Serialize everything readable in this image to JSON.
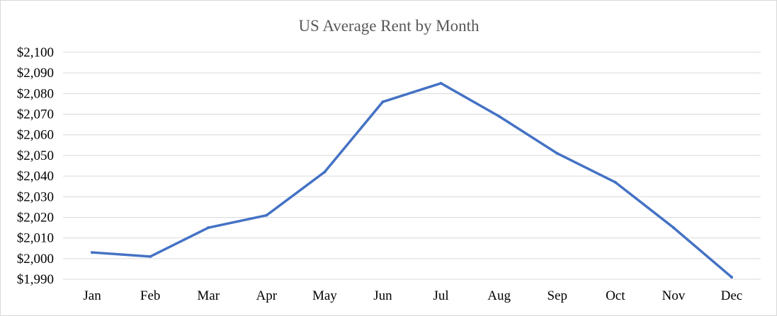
{
  "chart_data": {
    "type": "line",
    "title": "US Average Rent by Month",
    "xlabel": "",
    "ylabel": "",
    "categories": [
      "Jan",
      "Feb",
      "Mar",
      "Apr",
      "May",
      "Jun",
      "Jul",
      "Aug",
      "Sep",
      "Oct",
      "Nov",
      "Dec"
    ],
    "series": [
      {
        "name": "US Average Rent",
        "color": "#4472c4",
        "values": [
          2003,
          2001,
          2015,
          2021,
          2042,
          2076,
          2085,
          2069,
          2051,
          2037,
          2015,
          1991
        ]
      }
    ],
    "ylim": [
      1990,
      2100
    ],
    "ytick_step": 10,
    "ytick_labels": [
      "$1,990",
      "$2,000",
      "$2,010",
      "$2,020",
      "$2,030",
      "$2,040",
      "$2,050",
      "$2,060",
      "$2,070",
      "$2,080",
      "$2,090",
      "$2,100"
    ],
    "grid": true,
    "legend": "none"
  }
}
